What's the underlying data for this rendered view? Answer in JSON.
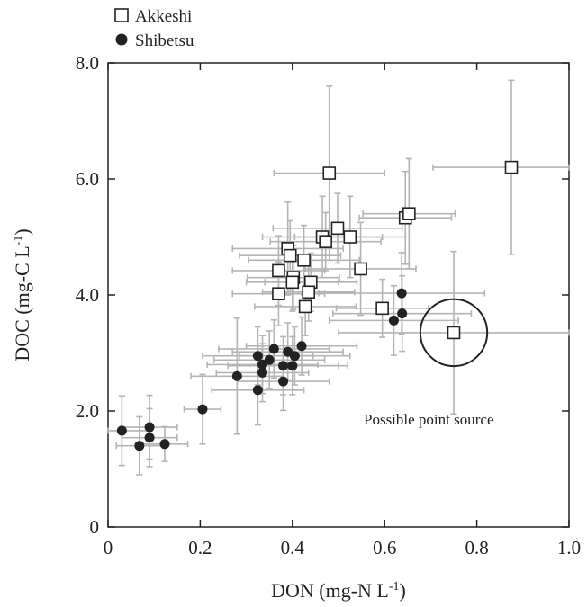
{
  "chart_data": {
    "type": "scatter",
    "xlabel": "DON (mg-N L",
    "xlabel_sup": "-1",
    "xlabel_end": ")",
    "ylabel": "DOC (mg-C L",
    "ylabel_sup": "-1",
    "ylabel_end": ")",
    "xlim": [
      0,
      1.0
    ],
    "ylim": [
      0,
      8.0
    ],
    "x_ticks": [
      0,
      0.2,
      0.4,
      0.6,
      0.8,
      1.0
    ],
    "x_tick_labels": [
      "0",
      "0.2",
      "0.4",
      "0.6",
      "0.8",
      "1.0"
    ],
    "y_ticks": [
      0,
      2.0,
      4.0,
      6.0,
      8.0
    ],
    "y_tick_labels": [
      "0",
      "2.0",
      "4.0",
      "6.0",
      "8.0"
    ],
    "legend_position": "top-left-outside",
    "annotation": {
      "text": "Possible point source",
      "x": 0.75,
      "y": 3.35,
      "radius_data_x": 0.055
    },
    "series": [
      {
        "name": "Akkeshi",
        "marker": "open-square",
        "points": [
          {
            "x": 0.48,
            "y": 6.1,
            "xerr": 0.12,
            "yerr": 1.5
          },
          {
            "x": 0.875,
            "y": 6.2,
            "xerr": 0.17,
            "yerr": 1.5
          },
          {
            "x": 0.645,
            "y": 5.33,
            "xerr": 0.1,
            "yerr": 0.8
          },
          {
            "x": 0.653,
            "y": 5.4,
            "xerr": 0.1,
            "yerr": 0.95
          },
          {
            "x": 0.498,
            "y": 5.15,
            "xerr": 0.14,
            "yerr": 0.6
          },
          {
            "x": 0.465,
            "y": 5.0,
            "xerr": 0.13,
            "yerr": 0.7
          },
          {
            "x": 0.472,
            "y": 4.92,
            "xerr": 0.12,
            "yerr": 0.5
          },
          {
            "x": 0.525,
            "y": 5.0,
            "xerr": 0.12,
            "yerr": 0.7
          },
          {
            "x": 0.39,
            "y": 4.8,
            "xerr": 0.12,
            "yerr": 0.8
          },
          {
            "x": 0.395,
            "y": 4.68,
            "xerr": 0.11,
            "yerr": 0.6
          },
          {
            "x": 0.425,
            "y": 4.6,
            "xerr": 0.12,
            "yerr": 0.6
          },
          {
            "x": 0.37,
            "y": 4.42,
            "xerr": 0.1,
            "yerr": 0.6
          },
          {
            "x": 0.548,
            "y": 4.45,
            "xerr": 0.12,
            "yerr": 0.8
          },
          {
            "x": 0.402,
            "y": 4.3,
            "xerr": 0.1,
            "yerr": 0.55
          },
          {
            "x": 0.4,
            "y": 4.22,
            "xerr": 0.1,
            "yerr": 0.5
          },
          {
            "x": 0.44,
            "y": 4.22,
            "xerr": 0.1,
            "yerr": 0.5
          },
          {
            "x": 0.435,
            "y": 4.05,
            "xerr": 0.1,
            "yerr": 0.5
          },
          {
            "x": 0.37,
            "y": 4.02,
            "xerr": 0.1,
            "yerr": 0.55
          },
          {
            "x": 0.428,
            "y": 3.8,
            "xerr": 0.11,
            "yerr": 0.5
          },
          {
            "x": 0.595,
            "y": 3.77,
            "xerr": 0.1,
            "yerr": 0.5
          },
          {
            "x": 0.75,
            "y": 3.35,
            "xerr": 0.25,
            "yerr": 1.4
          }
        ]
      },
      {
        "name": "Shibetsu",
        "marker": "filled-circle",
        "points": [
          {
            "x": 0.637,
            "y": 4.03,
            "xerr": 0.18,
            "yerr": 0.7
          },
          {
            "x": 0.638,
            "y": 3.68,
            "xerr": 0.15,
            "yerr": 0.65
          },
          {
            "x": 0.62,
            "y": 3.56,
            "xerr": 0.14,
            "yerr": 0.6
          },
          {
            "x": 0.42,
            "y": 3.12,
            "xerr": 0.12,
            "yerr": 0.5
          },
          {
            "x": 0.36,
            "y": 3.07,
            "xerr": 0.12,
            "yerr": 0.5
          },
          {
            "x": 0.39,
            "y": 3.02,
            "xerr": 0.12,
            "yerr": 0.5
          },
          {
            "x": 0.405,
            "y": 2.95,
            "xerr": 0.12,
            "yerr": 0.5
          },
          {
            "x": 0.325,
            "y": 2.95,
            "xerr": 0.12,
            "yerr": 0.5
          },
          {
            "x": 0.35,
            "y": 2.88,
            "xerr": 0.12,
            "yerr": 0.5
          },
          {
            "x": 0.335,
            "y": 2.8,
            "xerr": 0.12,
            "yerr": 0.5
          },
          {
            "x": 0.38,
            "y": 2.78,
            "xerr": 0.12,
            "yerr": 0.5
          },
          {
            "x": 0.4,
            "y": 2.78,
            "xerr": 0.12,
            "yerr": 0.5
          },
          {
            "x": 0.335,
            "y": 2.66,
            "xerr": 0.1,
            "yerr": 0.5
          },
          {
            "x": 0.28,
            "y": 2.6,
            "xerr": 0.1,
            "yerr": 1.0
          },
          {
            "x": 0.38,
            "y": 2.51,
            "xerr": 0.1,
            "yerr": 0.5
          },
          {
            "x": 0.325,
            "y": 2.36,
            "xerr": 0.1,
            "yerr": 0.6
          },
          {
            "x": 0.205,
            "y": 2.03,
            "xerr": 0.04,
            "yerr": 0.6
          },
          {
            "x": 0.03,
            "y": 1.66,
            "xerr": 0.06,
            "yerr": 0.6
          },
          {
            "x": 0.09,
            "y": 1.72,
            "xerr": 0.06,
            "yerr": 0.55
          },
          {
            "x": 0.09,
            "y": 1.54,
            "xerr": 0.06,
            "yerr": 0.5
          },
          {
            "x": 0.068,
            "y": 1.4,
            "xerr": 0.05,
            "yerr": 0.5
          },
          {
            "x": 0.123,
            "y": 1.43,
            "xerr": 0.05,
            "yerr": 0.3
          }
        ]
      }
    ]
  }
}
